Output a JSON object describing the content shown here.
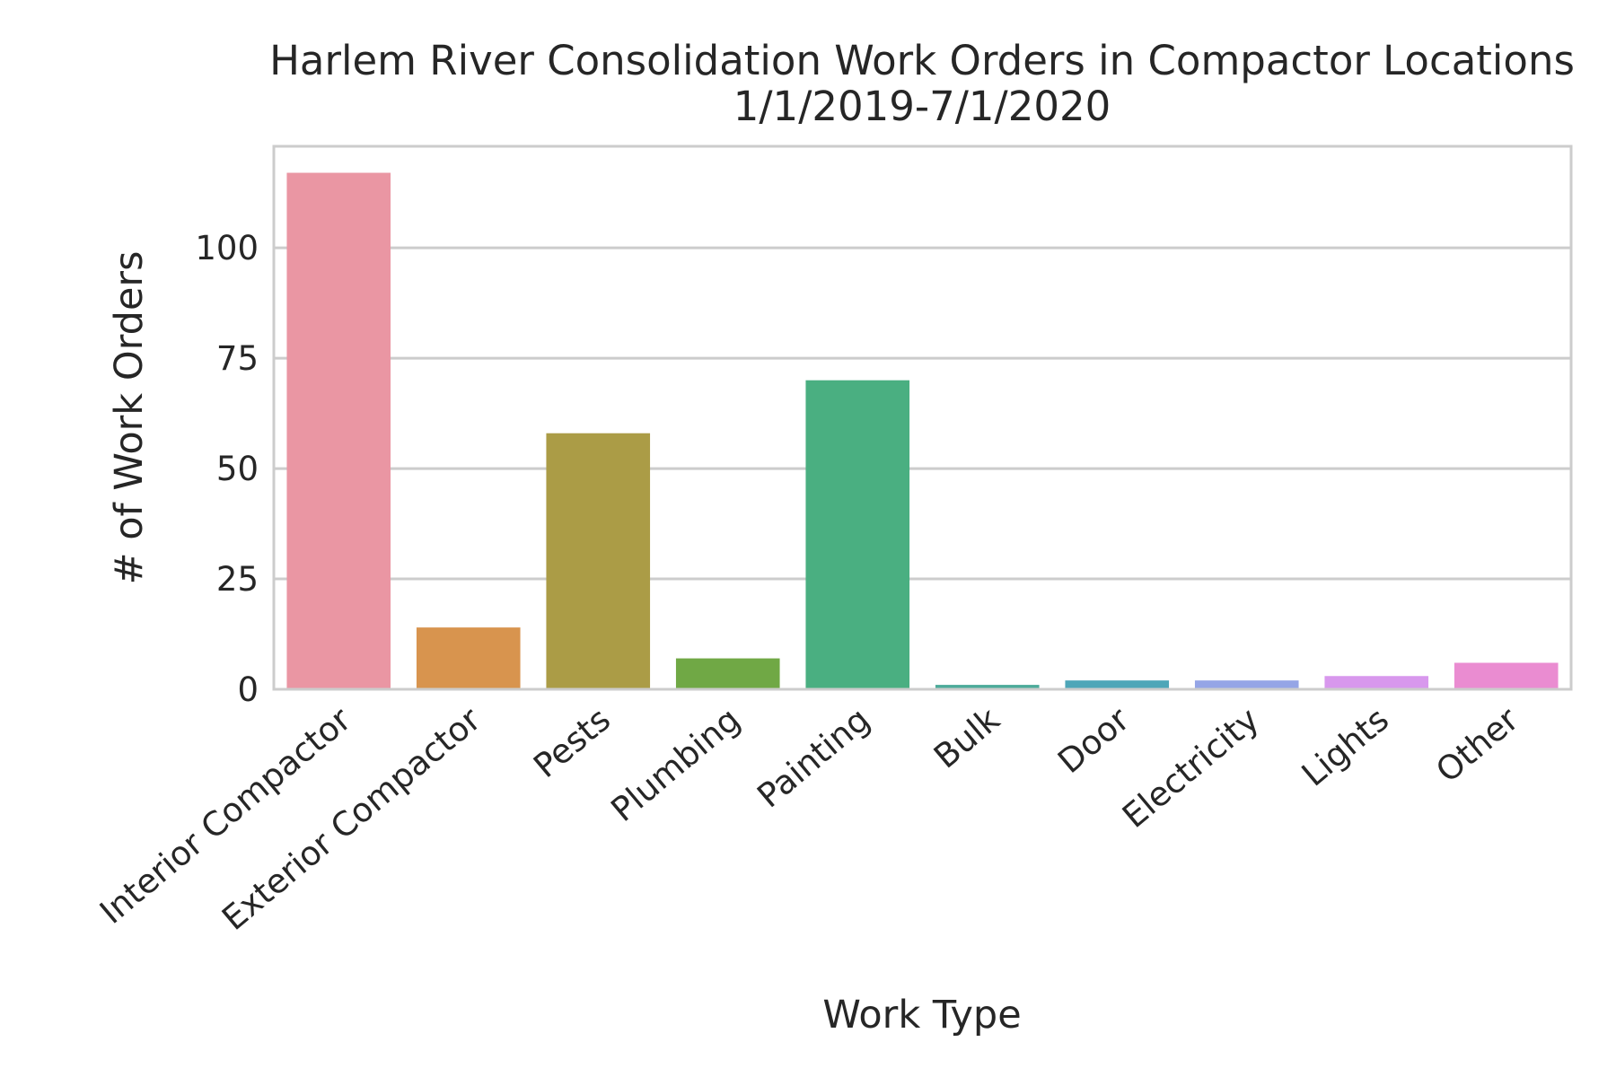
{
  "chart_data": {
    "type": "bar",
    "title": "Harlem River Consolidation Work Orders in Compactor Locations",
    "subtitle": "1/1/2019-7/1/2020",
    "xlabel": "Work Type",
    "ylabel": "# of Work Orders",
    "categories": [
      "Interior Compactor",
      "Exterior Compactor",
      "Pests",
      "Plumbing",
      "Painting",
      "Bulk",
      "Door",
      "Electricity",
      "Lights",
      "Other"
    ],
    "values": [
      117,
      14,
      58,
      7,
      70,
      1,
      2,
      2,
      3,
      6
    ],
    "colors": [
      "#ea96a3",
      "#d8944e",
      "#ab9c46",
      "#70a845",
      "#4aaf81",
      "#4dab9a",
      "#4ea6b8",
      "#95a5e6",
      "#d898ed",
      "#ea8cd1"
    ],
    "ylim": [
      0,
      123
    ],
    "yticks": [
      0,
      25,
      50,
      75,
      100
    ],
    "grid": true,
    "grid_axis": "y",
    "legend": false,
    "style": {
      "grid_color": "#cccccc",
      "spine_color": "#cccccc",
      "text_color": "#262626",
      "background": "#ffffff"
    }
  }
}
